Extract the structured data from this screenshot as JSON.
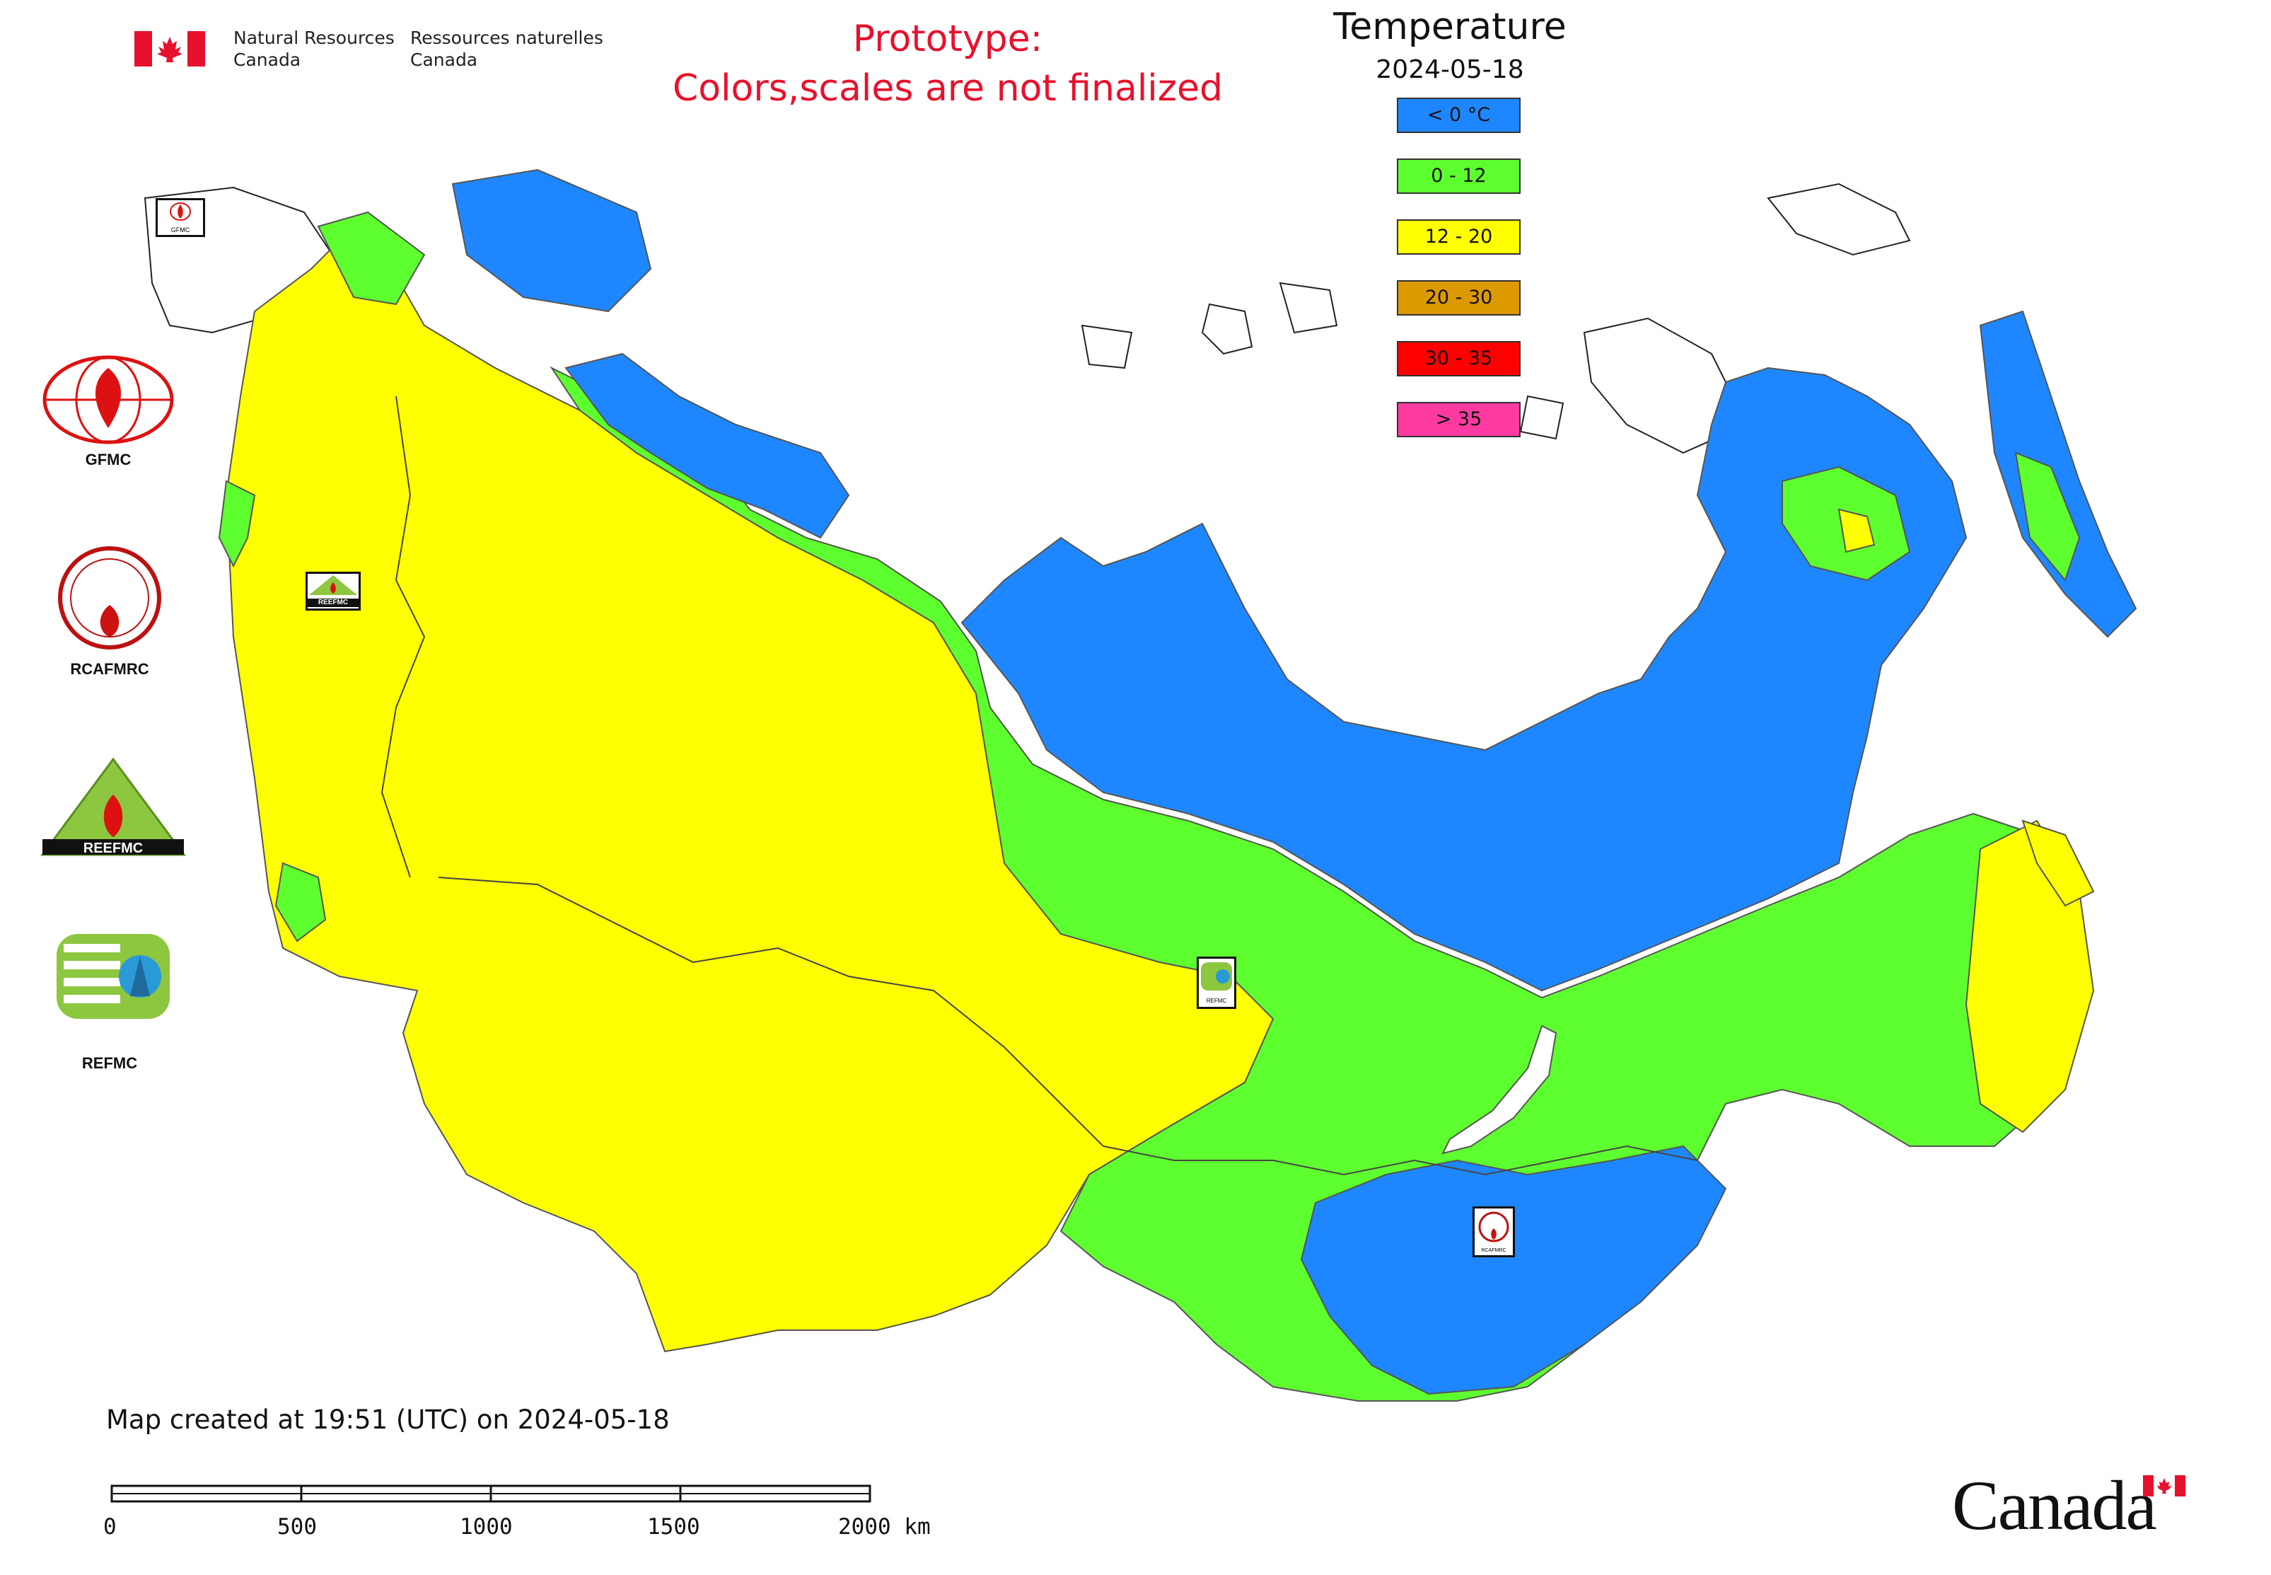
{
  "header": {
    "agency_en_line1": "Natural Resources",
    "agency_en_line2": "Canada",
    "agency_fr_line1": "Ressources naturelles",
    "agency_fr_line2": "Canada",
    "prototype_line1": "Prototype:",
    "prototype_line2": "Colors,scales are not finalized"
  },
  "legend": {
    "title": "Temperature",
    "date": "2024-05-18",
    "classes": [
      {
        "label": "< 0 °C",
        "color": "#1e87ff"
      },
      {
        "label": "0 - 12",
        "color": "#5eff2e"
      },
      {
        "label": "12 - 20",
        "color": "#ffff00"
      },
      {
        "label": "20 - 30",
        "color": "#dd9900"
      },
      {
        "label": "30 - 35",
        "color": "#ff0000"
      },
      {
        "label": "> 35",
        "color": "#ff3aa0"
      }
    ]
  },
  "organizations": [
    {
      "label": "GFMC",
      "icon": "gfmc-logo-icon"
    },
    {
      "label": "RCAFMRC",
      "icon": "rcafmrc-logo-icon"
    },
    {
      "label": "REEFMC",
      "icon": "reefmc-logo-icon"
    },
    {
      "label": "REFMC",
      "icon": "refmc-logo-icon"
    }
  ],
  "map_markers": {
    "gfmc_marker_text": "GFMC",
    "reefmc_marker_text": "REEFMC",
    "refmc_marker_text": "REFMC",
    "rcafmrc_marker_text": "RCAFMRC"
  },
  "footer": {
    "created_text": "Map created at 19:51 (UTC) on 2024-05-18",
    "scale_ticks": [
      "0",
      "500",
      "1000",
      "1500",
      "2000 km"
    ],
    "wordmark": "Canada"
  }
}
